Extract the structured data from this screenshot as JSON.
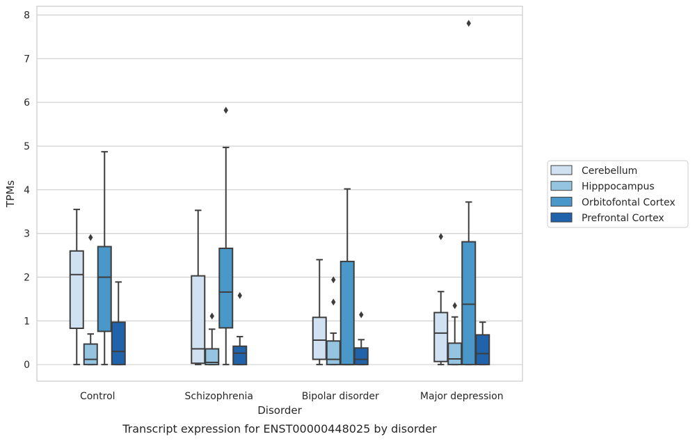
{
  "chart_data": {
    "type": "box",
    "title": "",
    "caption": "Transcript expression for ENST00000448025 by disorder",
    "xlabel": "Disorder",
    "ylabel": "TPMs",
    "ylim": [
      -0.38,
      8.2
    ],
    "yticks": [
      0,
      1,
      2,
      3,
      4,
      5,
      6,
      7,
      8
    ],
    "grid": "horizontal",
    "legend_position": "right",
    "categories": [
      "Control",
      "Schizophrenia",
      "Bipolar disorder",
      "Major depression"
    ],
    "series": [
      {
        "name": "Cerebellum",
        "color": "#d0e1f2",
        "boxes": [
          {
            "whislo": 0.0,
            "q1": 0.83,
            "med": 2.06,
            "q3": 2.6,
            "whishi": 3.55,
            "fliers": []
          },
          {
            "whislo": 0.0,
            "q1": 0.03,
            "med": 0.36,
            "q3": 2.03,
            "whishi": 3.53,
            "fliers": []
          },
          {
            "whislo": 0.0,
            "q1": 0.12,
            "med": 0.56,
            "q3": 1.08,
            "whishi": 2.4,
            "fliers": []
          },
          {
            "whislo": 0.0,
            "q1": 0.07,
            "med": 0.72,
            "q3": 1.19,
            "whishi": 1.67,
            "fliers": [
              2.93
            ]
          }
        ]
      },
      {
        "name": "Hipppocampus",
        "color": "#94c4df",
        "boxes": [
          {
            "whislo": 0.0,
            "q1": 0.0,
            "med": 0.12,
            "q3": 0.47,
            "whishi": 0.7,
            "fliers": [
              2.91
            ]
          },
          {
            "whislo": 0.0,
            "q1": 0.0,
            "med": 0.05,
            "q3": 0.36,
            "whishi": 0.81,
            "fliers": [
              1.11
            ]
          },
          {
            "whislo": 0.0,
            "q1": 0.0,
            "med": 0.12,
            "q3": 0.54,
            "whishi": 0.72,
            "fliers": [
              1.43,
              1.94
            ]
          },
          {
            "whislo": 0.0,
            "q1": 0.0,
            "med": 0.13,
            "q3": 0.49,
            "whishi": 1.09,
            "fliers": [
              1.35
            ]
          }
        ]
      },
      {
        "name": "Orbitofontal Cortex",
        "color": "#4a98c9",
        "boxes": [
          {
            "whislo": 0.0,
            "q1": 0.76,
            "med": 2.0,
            "q3": 2.7,
            "whishi": 4.87,
            "fliers": []
          },
          {
            "whislo": 0.0,
            "q1": 0.84,
            "med": 1.66,
            "q3": 2.66,
            "whishi": 4.97,
            "fliers": [
              5.82
            ]
          },
          {
            "whislo": 0.0,
            "q1": 0.0,
            "med": 0.0,
            "q3": 2.36,
            "whishi": 4.02,
            "fliers": []
          },
          {
            "whislo": 0.0,
            "q1": 0.0,
            "med": 1.38,
            "q3": 2.81,
            "whishi": 3.72,
            "fliers": [
              7.81
            ]
          }
        ]
      },
      {
        "name": "Prefrontal Cortex",
        "color": "#2163aa",
        "boxes": [
          {
            "whislo": 0.0,
            "q1": 0.0,
            "med": 0.3,
            "q3": 0.97,
            "whishi": 1.89,
            "fliers": []
          },
          {
            "whislo": 0.0,
            "q1": 0.0,
            "med": 0.26,
            "q3": 0.42,
            "whishi": 0.64,
            "fliers": [
              1.58
            ]
          },
          {
            "whislo": 0.0,
            "q1": 0.0,
            "med": 0.12,
            "q3": 0.38,
            "whishi": 0.57,
            "fliers": [
              1.14
            ]
          },
          {
            "whislo": 0.0,
            "q1": 0.0,
            "med": 0.25,
            "q3": 0.68,
            "whishi": 0.97,
            "fliers": []
          }
        ]
      }
    ]
  }
}
